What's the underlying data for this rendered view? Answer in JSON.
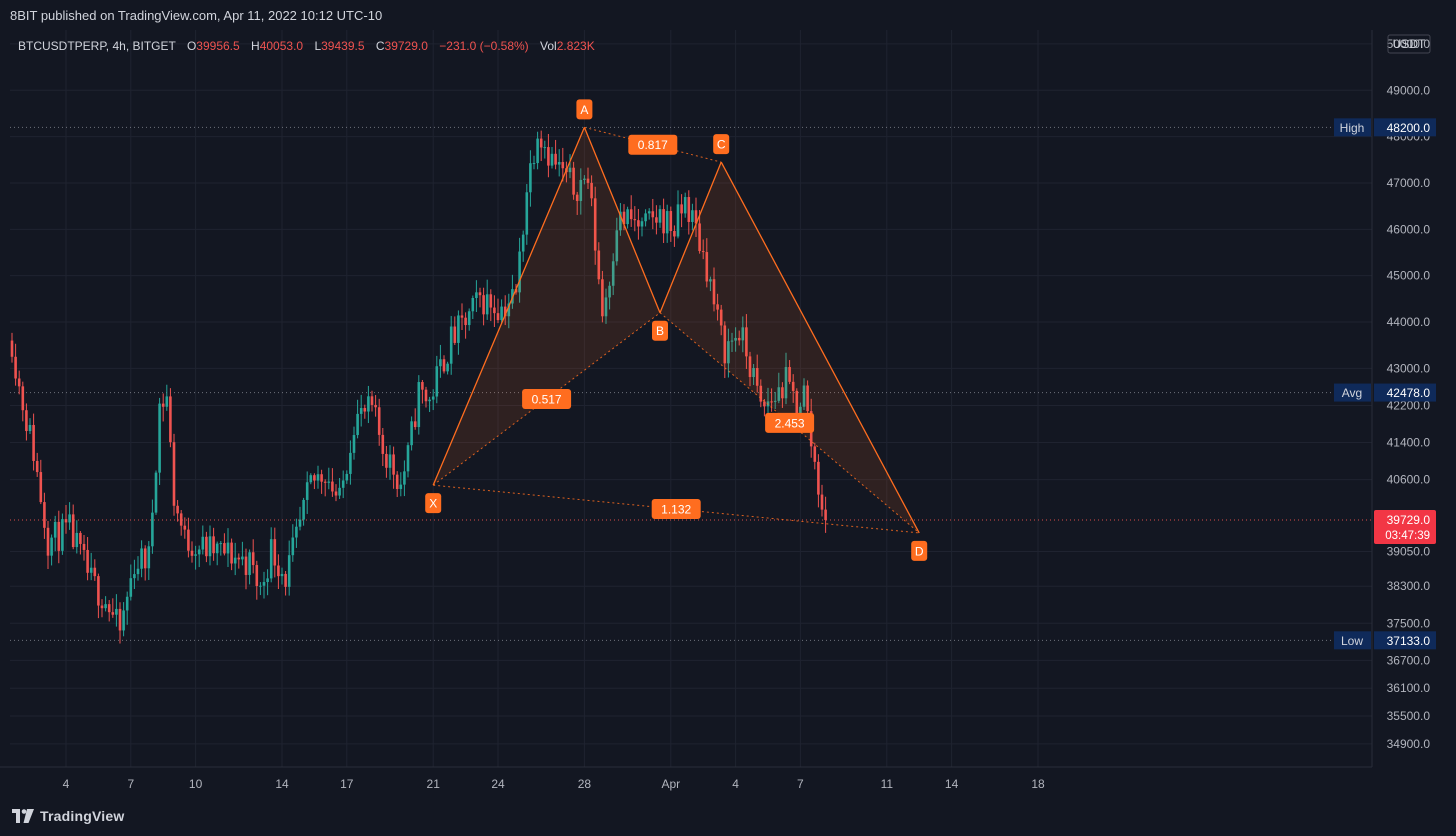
{
  "header": {
    "published": "8BIT published on TradingView.com, Apr 11, 2022 10:12 UTC-10"
  },
  "footer": {
    "brand": "TradingView"
  },
  "legend": {
    "symbol": "BTCUSDTPERP, 4h, BITGET",
    "o_label": "O",
    "o_value": "39956.5",
    "h_label": "H",
    "h_value": "40053.0",
    "l_label": "L",
    "l_value": "39439.5",
    "c_label": "C",
    "c_value": "39729.0",
    "change": "−231.0 (−0.58%)",
    "vol_label": "Vol",
    "vol_value": "2.823K"
  },
  "colors": {
    "background": "#131722",
    "up": "#26a69a",
    "down": "#ef5350",
    "pattern": "#ff6d1f",
    "label_bg": "#0f2a5a",
    "price_tag": "#f23645"
  },
  "chart_data": {
    "type": "candlestick",
    "title": "",
    "xlabel": "",
    "ylabel": "",
    "currency": "USDT",
    "ylim": [
      34400,
      50300
    ],
    "y_ticks": [
      "50000.0",
      "49000.0",
      "48000.0",
      "47000.0",
      "46000.0",
      "45000.0",
      "44000.0",
      "43000.0",
      "42200.0",
      "41400.0",
      "40600.0",
      "39050.0",
      "38300.0",
      "37500.0",
      "36700.0",
      "36100.0",
      "35500.0",
      "34900.0"
    ],
    "x_ticks": [
      {
        "label": "4",
        "bar": 15
      },
      {
        "label": "7",
        "bar": 33
      },
      {
        "label": "10",
        "bar": 51
      },
      {
        "label": "14",
        "bar": 75
      },
      {
        "label": "17",
        "bar": 93
      },
      {
        "label": "21",
        "bar": 117
      },
      {
        "label": "24",
        "bar": 135
      },
      {
        "label": "28",
        "bar": 159
      },
      {
        "label": "Apr",
        "bar": 183
      },
      {
        "label": "4",
        "bar": 201
      },
      {
        "label": "7",
        "bar": 219
      },
      {
        "label": "11",
        "bar": 243
      },
      {
        "label": "14",
        "bar": 261
      },
      {
        "label": "18",
        "bar": 285
      }
    ],
    "price_lines": [
      {
        "name": "High",
        "value": 48200.0,
        "label": "48200.0"
      },
      {
        "name": "Avg",
        "value": 42478.0,
        "label": "42478.0"
      },
      {
        "name": "Low",
        "value": 37133.0,
        "label": "37133.0"
      }
    ],
    "last_price": {
      "value": 39729.0,
      "label": "39729.0",
      "countdown": "03:47:39"
    },
    "anchors": [
      {
        "bar": 0,
        "price": 43600
      },
      {
        "bar": 2,
        "price": 42600
      },
      {
        "bar": 6,
        "price": 41200
      },
      {
        "bar": 10,
        "price": 39300
      },
      {
        "bar": 16,
        "price": 39500
      },
      {
        "bar": 22,
        "price": 38400
      },
      {
        "bar": 26,
        "price": 38000
      },
      {
        "bar": 30,
        "price": 37300
      },
      {
        "bar": 34,
        "price": 38800
      },
      {
        "bar": 38,
        "price": 38900
      },
      {
        "bar": 41,
        "price": 42200
      },
      {
        "bar": 43,
        "price": 42400
      },
      {
        "bar": 45,
        "price": 40200
      },
      {
        "bar": 48,
        "price": 39300
      },
      {
        "bar": 54,
        "price": 39100
      },
      {
        "bar": 60,
        "price": 39000
      },
      {
        "bar": 66,
        "price": 38800
      },
      {
        "bar": 69,
        "price": 38200
      },
      {
        "bar": 72,
        "price": 39100
      },
      {
        "bar": 76,
        "price": 38500
      },
      {
        "bar": 79,
        "price": 39300
      },
      {
        "bar": 83,
        "price": 40500
      },
      {
        "bar": 87,
        "price": 40800
      },
      {
        "bar": 91,
        "price": 40100
      },
      {
        "bar": 95,
        "price": 41900
      },
      {
        "bar": 100,
        "price": 42100
      },
      {
        "bar": 103,
        "price": 41300
      },
      {
        "bar": 108,
        "price": 40500
      },
      {
        "bar": 110,
        "price": 41100
      },
      {
        "bar": 113,
        "price": 42500
      },
      {
        "bar": 116,
        "price": 42300
      },
      {
        "bar": 118,
        "price": 42800
      },
      {
        "bar": 122,
        "price": 43600
      },
      {
        "bar": 126,
        "price": 44000
      },
      {
        "bar": 130,
        "price": 44500
      },
      {
        "bar": 136,
        "price": 44300
      },
      {
        "bar": 140,
        "price": 44600
      },
      {
        "bar": 143,
        "price": 46900
      },
      {
        "bar": 146,
        "price": 48200
      },
      {
        "bar": 150,
        "price": 47500
      },
      {
        "bar": 156,
        "price": 46900
      },
      {
        "bar": 160,
        "price": 47100
      },
      {
        "bar": 162,
        "price": 45700
      },
      {
        "bar": 164,
        "price": 44200
      },
      {
        "bar": 166,
        "price": 45000
      },
      {
        "bar": 168,
        "price": 46200
      },
      {
        "bar": 172,
        "price": 46200
      },
      {
        "bar": 175,
        "price": 46000
      },
      {
        "bar": 180,
        "price": 46300
      },
      {
        "bar": 184,
        "price": 46000
      },
      {
        "bar": 187,
        "price": 46600
      },
      {
        "bar": 190,
        "price": 46000
      },
      {
        "bar": 193,
        "price": 45200
      },
      {
        "bar": 196,
        "price": 44000
      },
      {
        "bar": 198,
        "price": 43400
      },
      {
        "bar": 202,
        "price": 43800
      },
      {
        "bar": 206,
        "price": 42800
      },
      {
        "bar": 208,
        "price": 42100
      },
      {
        "bar": 212,
        "price": 42400
      },
      {
        "bar": 215,
        "price": 42700
      },
      {
        "bar": 218,
        "price": 42200
      },
      {
        "bar": 220,
        "price": 42500
      },
      {
        "bar": 222,
        "price": 41400
      },
      {
        "bar": 224,
        "price": 40500
      },
      {
        "bar": 226,
        "price": 39700
      }
    ],
    "harmonic_pattern": {
      "points": [
        {
          "name": "X",
          "bar": 117,
          "price": 40480
        },
        {
          "name": "A",
          "bar": 159,
          "price": 48200
        },
        {
          "name": "B",
          "bar": 180,
          "price": 44200
        },
        {
          "name": "C",
          "bar": 197,
          "price": 47450
        },
        {
          "name": "D",
          "bar": 252,
          "price": 39450
        }
      ],
      "ratios": [
        {
          "value": "0.517",
          "from": "X",
          "to": "B"
        },
        {
          "value": "0.817",
          "from": "A",
          "to": "C"
        },
        {
          "value": "2.453",
          "from": "B",
          "to": "D"
        },
        {
          "value": "1.132",
          "from": "X",
          "to": "D"
        }
      ]
    }
  }
}
